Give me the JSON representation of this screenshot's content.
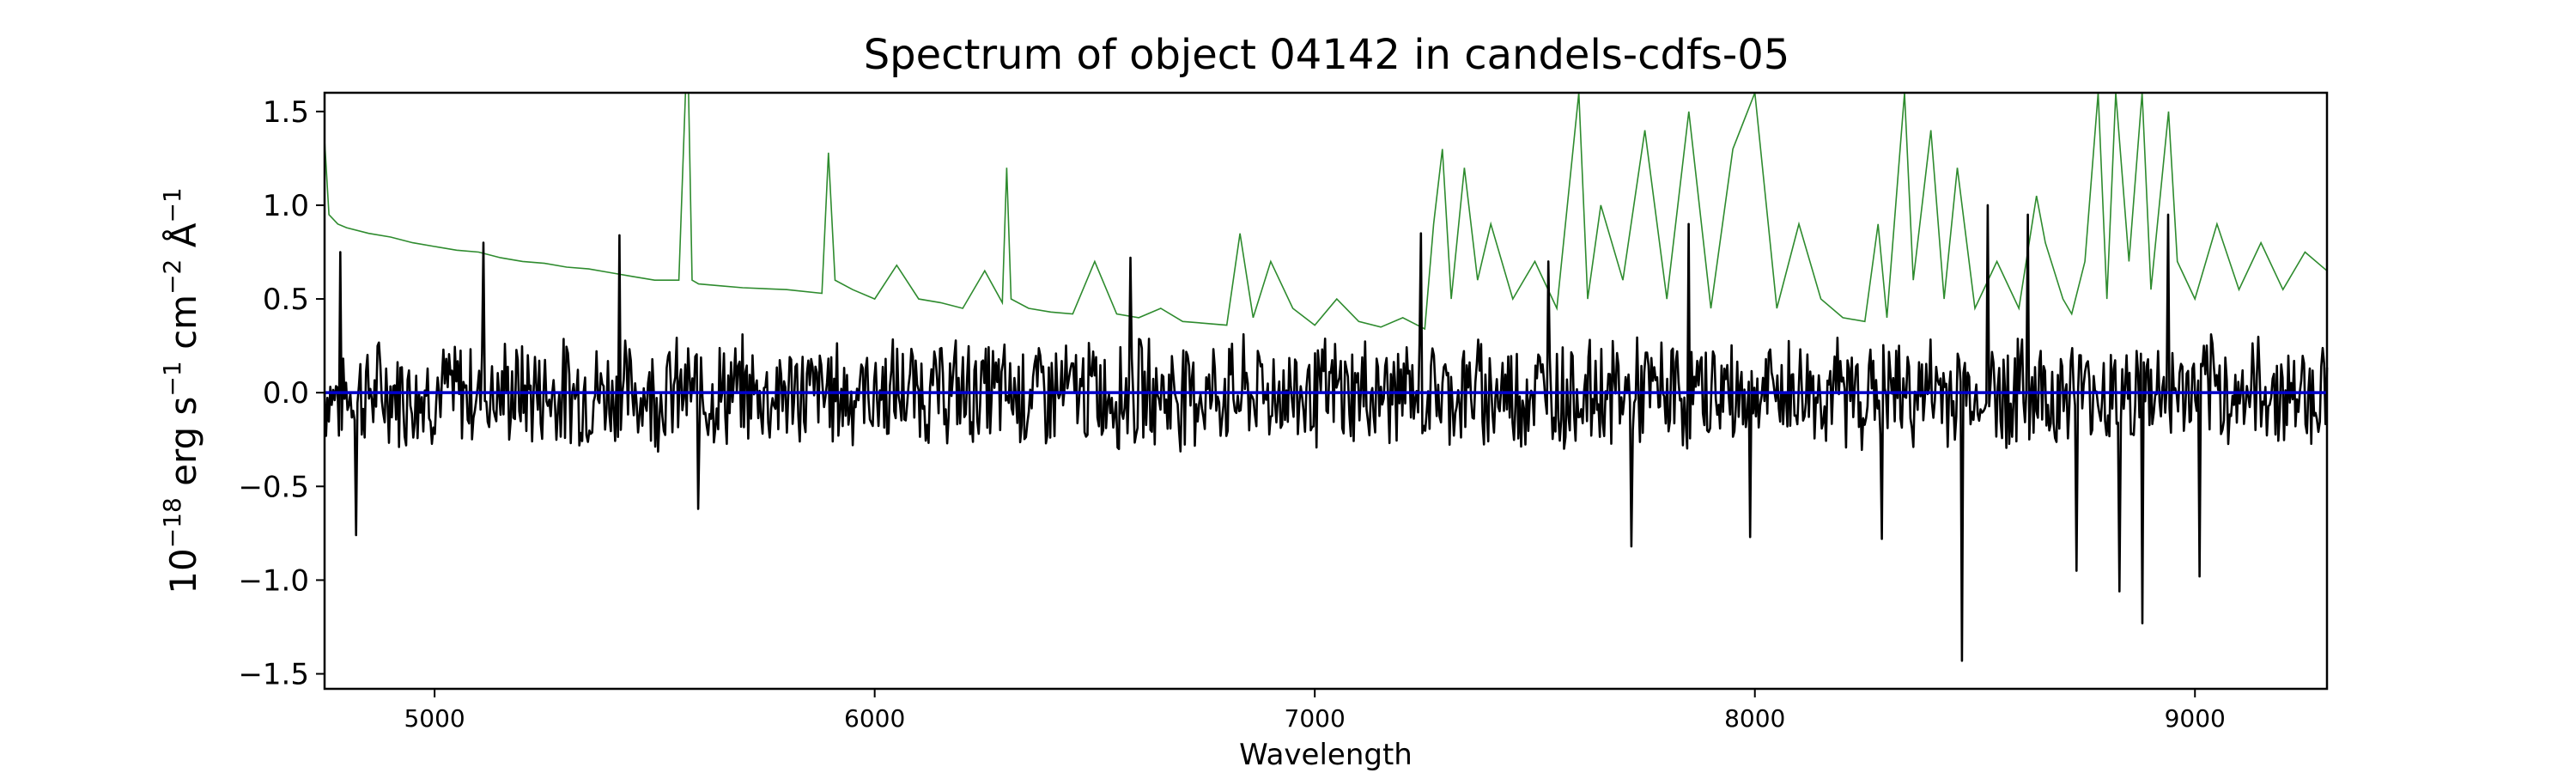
{
  "chart_data": {
    "type": "line",
    "title": "Spectrum of object 04142 in candels-cdfs-05",
    "xlabel": "Wavelength",
    "ylabel": {
      "base": "10",
      "exp1": "−18",
      "unit1": " erg s",
      "exp2": "−1",
      "unit2": " cm",
      "exp3": "−2",
      "unit3": " Å",
      "exp4": "−1"
    },
    "xlim": [
      4750,
      9300
    ],
    "ylim": [
      -1.58,
      1.6
    ],
    "x_ticks": [
      {
        "value": 5000,
        "label": "5000"
      },
      {
        "value": 6000,
        "label": "6000"
      },
      {
        "value": 7000,
        "label": "7000"
      },
      {
        "value": 8000,
        "label": "8000"
      },
      {
        "value": 9000,
        "label": "9000"
      }
    ],
    "y_ticks": [
      {
        "value": 1.5,
        "label": "1.5"
      },
      {
        "value": 1.0,
        "label": "1.0"
      },
      {
        "value": 0.5,
        "label": "0.5"
      },
      {
        "value": 0.0,
        "label": "0.0"
      },
      {
        "value": -0.5,
        "label": "−0.5"
      },
      {
        "value": -1.0,
        "label": "−1.0"
      },
      {
        "value": -1.5,
        "label": "−1.5"
      }
    ],
    "grid": false,
    "series": [
      {
        "role": "noise",
        "color": "#2e8b2e",
        "x": [
          4750,
          4760,
          4780,
          4800,
          4850,
          4900,
          4950,
          5000,
          5050,
          5100,
          5150,
          5200,
          5250,
          5300,
          5350,
          5400,
          5450,
          5500,
          5555,
          5570,
          5577,
          5585,
          5600,
          5650,
          5700,
          5800,
          5880,
          5895,
          5910,
          5950,
          6000,
          6050,
          6100,
          6150,
          6200,
          6250,
          6290,
          6300,
          6310,
          6350,
          6400,
          6450,
          6500,
          6550,
          6600,
          6650,
          6700,
          6750,
          6800,
          6830,
          6860,
          6900,
          6950,
          7000,
          7050,
          7100,
          7150,
          7200,
          7250,
          7270,
          7290,
          7310,
          7340,
          7370,
          7400,
          7450,
          7500,
          7550,
          7600,
          7620,
          7650,
          7700,
          7750,
          7800,
          7850,
          7900,
          7950,
          8000,
          8050,
          8100,
          8150,
          8200,
          8250,
          8280,
          8300,
          8340,
          8360,
          8400,
          8430,
          8460,
          8500,
          8550,
          8600,
          8640,
          8660,
          8700,
          8720,
          8750,
          8780,
          8800,
          8820,
          8850,
          8880,
          8900,
          8940,
          8960,
          9000,
          9050,
          9100,
          9150,
          9200,
          9250,
          9300
        ],
        "y": [
          1.35,
          0.95,
          0.9,
          0.88,
          0.85,
          0.83,
          0.8,
          0.78,
          0.76,
          0.75,
          0.72,
          0.7,
          0.69,
          0.67,
          0.66,
          0.64,
          0.62,
          0.6,
          0.6,
          1.62,
          1.62,
          0.6,
          0.58,
          0.57,
          0.56,
          0.55,
          0.53,
          1.28,
          0.6,
          0.55,
          0.5,
          0.68,
          0.5,
          0.48,
          0.45,
          0.65,
          0.48,
          1.2,
          0.5,
          0.45,
          0.43,
          0.42,
          0.7,
          0.42,
          0.4,
          0.45,
          0.38,
          0.37,
          0.36,
          0.85,
          0.4,
          0.7,
          0.45,
          0.36,
          0.5,
          0.38,
          0.35,
          0.4,
          0.34,
          0.9,
          1.3,
          0.5,
          1.2,
          0.6,
          0.9,
          0.5,
          0.7,
          0.45,
          1.6,
          0.5,
          1.0,
          0.6,
          1.4,
          0.5,
          1.5,
          0.45,
          1.3,
          1.6,
          0.45,
          0.9,
          0.5,
          0.4,
          0.38,
          0.9,
          0.4,
          1.6,
          0.6,
          1.4,
          0.5,
          1.2,
          0.45,
          0.7,
          0.45,
          1.05,
          0.8,
          0.5,
          0.42,
          0.7,
          1.6,
          0.5,
          1.6,
          0.7,
          1.6,
          0.55,
          1.5,
          0.7,
          0.5,
          0.9,
          0.55,
          0.8,
          0.55,
          0.75,
          0.65
        ]
      },
      {
        "role": "flux",
        "color": "#000000",
        "x_start": 4750,
        "x_end": 9300,
        "points": 1400,
        "extremes": [
          {
            "x": 4785,
            "y": 0.75
          },
          {
            "x": 4820,
            "y": -0.76
          },
          {
            "x": 5110,
            "y": 0.8
          },
          {
            "x": 5420,
            "y": 0.84
          },
          {
            "x": 5600,
            "y": -0.62
          },
          {
            "x": 6580,
            "y": 0.72
          },
          {
            "x": 7240,
            "y": 0.85
          },
          {
            "x": 7530,
            "y": 0.7
          },
          {
            "x": 7720,
            "y": -0.82
          },
          {
            "x": 7850,
            "y": 0.9
          },
          {
            "x": 7990,
            "y": -0.77
          },
          {
            "x": 8290,
            "y": -0.78
          },
          {
            "x": 8470,
            "y": -1.43
          },
          {
            "x": 8530,
            "y": 1.0
          },
          {
            "x": 8620,
            "y": 0.95
          },
          {
            "x": 8730,
            "y": -0.95
          },
          {
            "x": 8830,
            "y": -1.06
          },
          {
            "x": 8880,
            "y": -1.23
          },
          {
            "x": 8940,
            "y": 0.95
          },
          {
            "x": 9010,
            "y": -0.98
          }
        ],
        "amplitude": 0.25
      },
      {
        "role": "model",
        "color": "#0000cc",
        "x": [
          4750,
          9300
        ],
        "y": [
          0.0,
          0.0
        ]
      }
    ]
  }
}
